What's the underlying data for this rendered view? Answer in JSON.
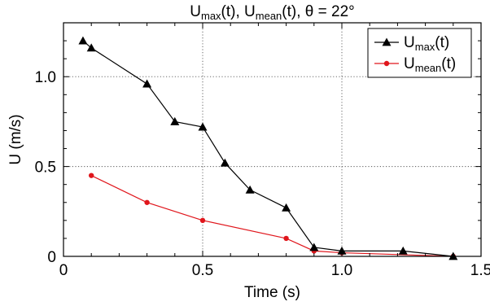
{
  "chart_data": {
    "type": "line",
    "title": {
      "parts": [
        {
          "t": "U",
          "sub": false
        },
        {
          "t": "max",
          "sub": true
        },
        {
          "t": "(t), U",
          "sub": false
        },
        {
          "t": "mean",
          "sub": true
        },
        {
          "t": "(t), θ = 22°",
          "sub": false
        }
      ]
    },
    "xlabel": "Time (s)",
    "ylabel": "U (m/s)",
    "xlim": [
      0,
      1.5
    ],
    "ylim": [
      0,
      1.3
    ],
    "x_ticks": [
      {
        "value": 0,
        "label": "0"
      },
      {
        "value": 0.5,
        "label": "0.5"
      },
      {
        "value": 1.0,
        "label": "1.0"
      },
      {
        "value": 1.5,
        "label": "1.5"
      }
    ],
    "y_ticks": [
      {
        "value": 0,
        "label": "0"
      },
      {
        "value": 0.5,
        "label": "0.5"
      },
      {
        "value": 1.0,
        "label": "1.0"
      }
    ],
    "x_minor_step": 0.1,
    "y_minor_step": 0.1,
    "grid": "dotted at major ticks",
    "legend_position": "top-right",
    "series": [
      {
        "name": [
          {
            "t": "U",
            "sub": false
          },
          {
            "t": "max",
            "sub": true
          },
          {
            "t": "(t)",
            "sub": false
          }
        ],
        "color": "#000000",
        "marker": "triangle",
        "x": [
          0.07,
          0.1,
          0.3,
          0.4,
          0.5,
          0.58,
          0.67,
          0.8,
          0.9,
          1.0,
          1.22,
          1.4
        ],
        "y": [
          1.2,
          1.16,
          0.96,
          0.75,
          0.72,
          0.52,
          0.37,
          0.27,
          0.05,
          0.03,
          0.03,
          0.0
        ]
      },
      {
        "name": [
          {
            "t": "U",
            "sub": false
          },
          {
            "t": "mean",
            "sub": true
          },
          {
            "t": "(t)",
            "sub": false
          }
        ],
        "color": "#e0161c",
        "marker": "circle",
        "x": [
          0.1,
          0.3,
          0.5,
          0.8,
          0.9,
          1.0,
          1.4
        ],
        "y": [
          0.45,
          0.3,
          0.2,
          0.1,
          0.03,
          0.02,
          0.0
        ]
      }
    ]
  }
}
